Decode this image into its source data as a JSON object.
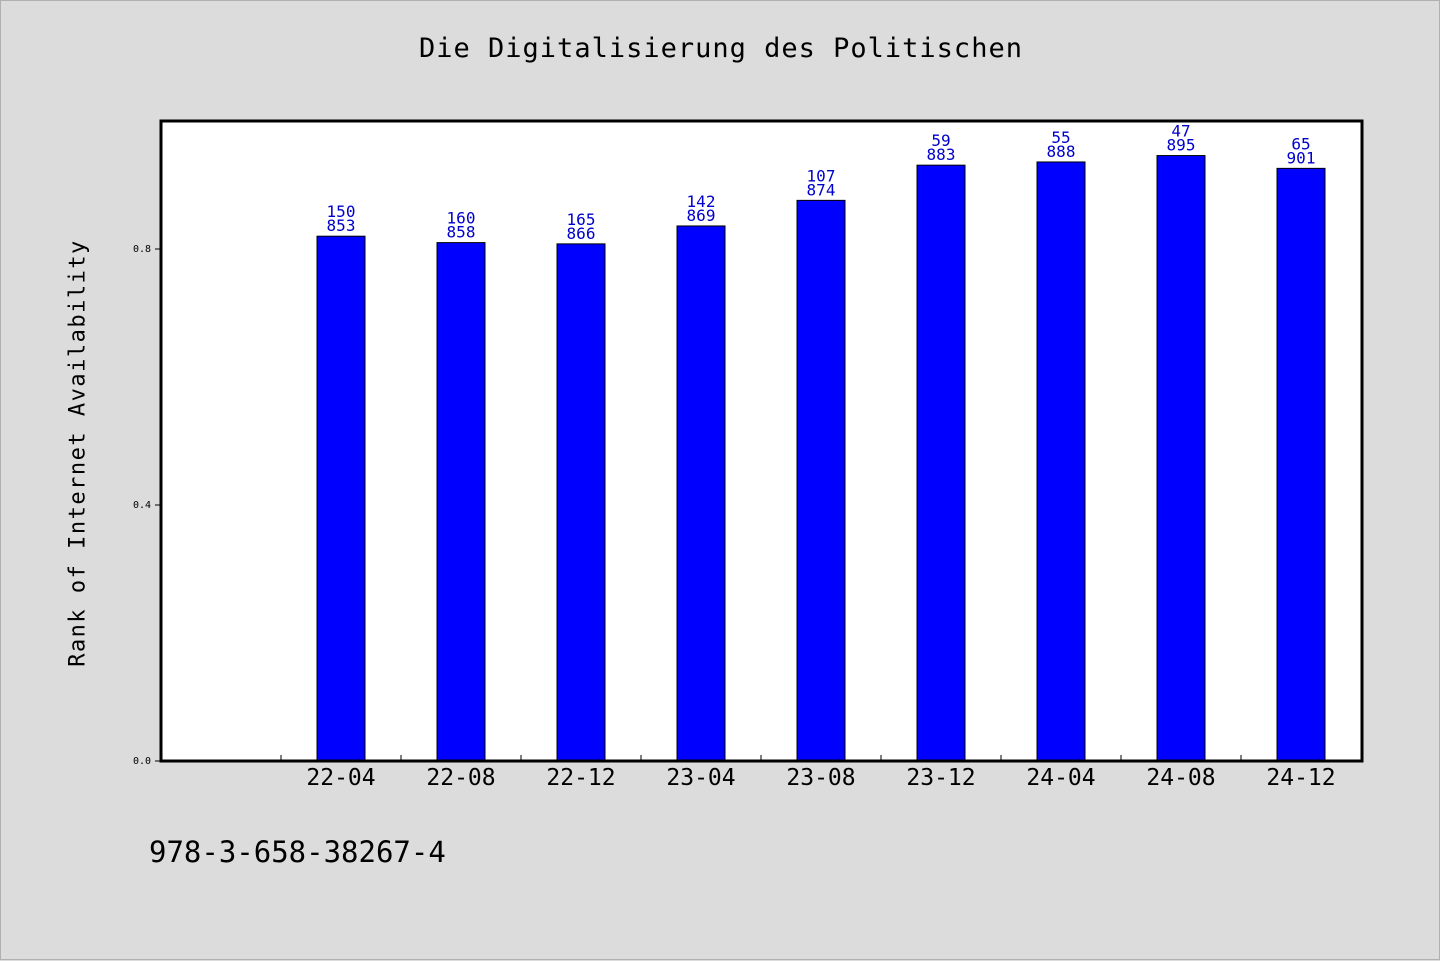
{
  "chart_data": {
    "type": "bar",
    "title": "Die Digitalisierung des Politischen",
    "xlabel": "",
    "ylabel": "Rank of Internet Availability",
    "categories": [
      "22-04",
      "22-08",
      "22-12",
      "23-04",
      "23-08",
      "23-12",
      "24-04",
      "24-08",
      "24-12"
    ],
    "series": [
      {
        "values": [
          0.82,
          0.81,
          0.808,
          0.836,
          0.876,
          0.931,
          0.936,
          0.946,
          0.926
        ],
        "label_top": [
          "150",
          "160",
          "165",
          "142",
          "107",
          "59",
          "55",
          "47",
          "65"
        ],
        "label_bottom": [
          "853",
          "858",
          "866",
          "869",
          "874",
          "883",
          "888",
          "895",
          "901"
        ]
      }
    ],
    "ylim": [
      0,
      1.0
    ],
    "yticks": [
      "0.0",
      "0.4",
      "0.8"
    ],
    "ytick_values": [
      0.0,
      0.4,
      0.8
    ],
    "grid": false,
    "colors": {
      "bar": "#0000ff",
      "label": "#0000cc",
      "background": "#dcdcdc",
      "plot_bg": "#ffffff"
    }
  },
  "footer": {
    "code": "978-3-658-38267-4"
  }
}
